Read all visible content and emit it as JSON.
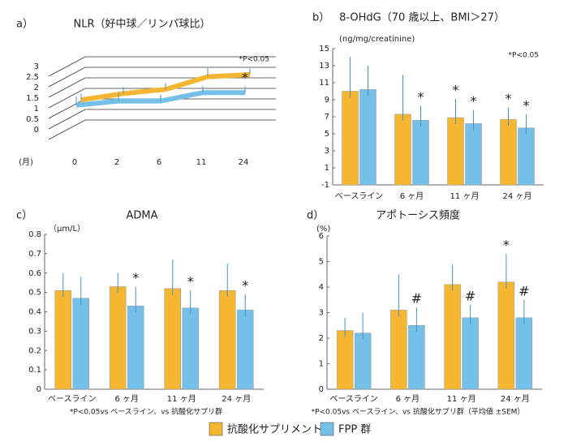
{
  "legend": [
    {
      "name": "抗酸化サプリメント群",
      "color": "#f5b731"
    },
    {
      "name": "FPP 群",
      "color": "#74c0e8"
    }
  ],
  "chart_data": [
    {
      "type": "line",
      "panel_label": "a）",
      "title": "NLR（好中球／リンパ球比）",
      "x_unit_label": "(月)",
      "note": "*P<0.05",
      "categories": [
        "0",
        "2",
        "6",
        "11",
        "24"
      ],
      "series": [
        {
          "color": "#f5b731",
          "values": [
            0.8,
            1.1,
            1.3,
            1.9,
            2.0
          ],
          "errors": [
            0.3,
            0.3,
            0.3,
            0.4,
            0.3
          ]
        },
        {
          "color": "#74c0e8",
          "values": [
            0.7,
            0.9,
            0.9,
            1.3,
            1.3
          ],
          "errors": [
            0.4,
            0.4,
            0.3,
            0.3,
            0.3
          ],
          "marks": [
            null,
            null,
            null,
            null,
            "*"
          ]
        }
      ],
      "ylim": [
        0,
        3
      ],
      "yticks": [
        0,
        0.5,
        1,
        1.5,
        2,
        2.5,
        3
      ]
    },
    {
      "type": "bar",
      "panel_label": "b）",
      "title": "8-OHdG（70 歳以上、BMI＞27）",
      "y_label": "(ng/mg/creatinine)",
      "note": "*P<0.05",
      "categories": [
        "ベースライン",
        "6 ヶ月",
        "11 ヶ月",
        "24 ヶ月"
      ],
      "series": [
        {
          "color": "#f5b731",
          "values": [
            10,
            7.3,
            6.9,
            6.7
          ],
          "errors": [
            4,
            4.6,
            2.2,
            1.4
          ],
          "marks": [
            null,
            null,
            "*",
            "*"
          ]
        },
        {
          "color": "#74c0e8",
          "values": [
            10.2,
            6.6,
            6.2,
            5.7
          ],
          "errors": [
            2.8,
            1.7,
            1.6,
            1.6
          ],
          "marks": [
            null,
            "*",
            "*",
            "*"
          ]
        }
      ],
      "ylim": [
        -1,
        15
      ],
      "yticks": [
        -1,
        1,
        3,
        5,
        7,
        9,
        11,
        13,
        15
      ]
    },
    {
      "type": "bar",
      "panel_label": "c）",
      "title": "ADMA",
      "y_label": "（μm/L）",
      "note": "*P<0.05vs ベースライン、vs 抗酸化サプリ群",
      "categories": [
        "ベースライン",
        "6 ヶ月",
        "11 ヶ月",
        "24 ヶ月"
      ],
      "series": [
        {
          "color": "#f5b731",
          "values": [
            0.51,
            0.53,
            0.52,
            0.51
          ],
          "errors": [
            0.09,
            0.07,
            0.15,
            0.14
          ]
        },
        {
          "color": "#74c0e8",
          "values": [
            0.47,
            0.43,
            0.42,
            0.41
          ],
          "errors": [
            0.11,
            0.1,
            0.09,
            0.08
          ],
          "marks": [
            null,
            "*",
            "*",
            "*"
          ]
        }
      ],
      "ylim": [
        0,
        0.8
      ],
      "yticks": [
        0,
        0.1,
        0.2,
        0.3,
        0.4,
        0.5,
        0.6,
        0.7,
        0.8
      ]
    },
    {
      "type": "bar",
      "panel_label": "d）",
      "title": "アポトーシス頻度",
      "y_label": "(%)",
      "note": "*P<0.05vs ベースライン、vs 抗酸化サプリ群（平均値 ±SEM）",
      "categories": [
        "ベースライン",
        "6 ヶ月",
        "11 ヶ月",
        "24 ヶ月"
      ],
      "series": [
        {
          "color": "#f5b731",
          "values": [
            2.3,
            3.1,
            4.1,
            4.2
          ],
          "errors": [
            0.5,
            1.4,
            0.8,
            1.1
          ],
          "marks": [
            null,
            null,
            null,
            "*"
          ]
        },
        {
          "color": "#74c0e8",
          "values": [
            2.2,
            2.5,
            2.8,
            2.8
          ],
          "errors": [
            0.8,
            0.7,
            0.5,
            0.7
          ],
          "marks": [
            null,
            "#",
            "#",
            "#"
          ]
        }
      ],
      "ylim": [
        0,
        6
      ],
      "yticks": [
        0,
        1,
        2,
        3,
        4,
        5,
        6
      ]
    }
  ]
}
